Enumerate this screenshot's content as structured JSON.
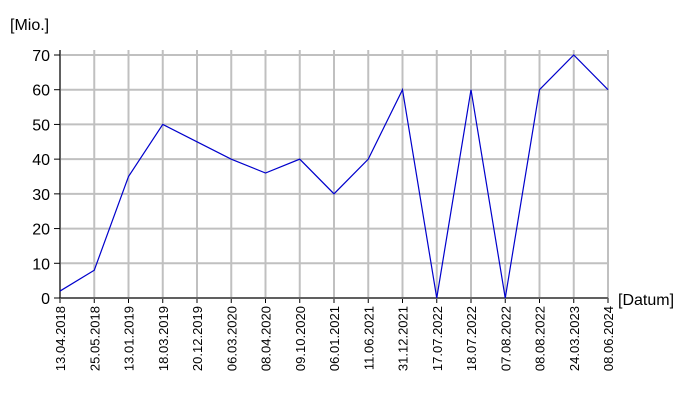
{
  "chart_data": {
    "type": "line",
    "y_label": "[Mio.]",
    "x_label": "[Datum]",
    "categories": [
      "13.04.2018",
      "25.05.2018",
      "13.01.2019",
      "18.03.2019",
      "20.12.2019",
      "06.03.2020",
      "08.04.2020",
      "09.10.2020",
      "06.01.2021",
      "11.06.2021",
      "31.12.2021",
      "17.07.2022",
      "18.07.2022",
      "07.08.2022",
      "08.08.2022",
      "24.03.2023",
      "08.06.2024"
    ],
    "values": [
      2,
      8,
      35,
      50,
      45,
      40,
      36,
      40,
      30,
      40,
      60,
      0,
      60,
      0,
      60,
      70,
      60
    ],
    "color": "#0000cc",
    "ylim": [
      0,
      70
    ],
    "yticks": [
      0,
      10,
      20,
      30,
      40,
      50,
      60,
      70
    ],
    "grid": true
  }
}
